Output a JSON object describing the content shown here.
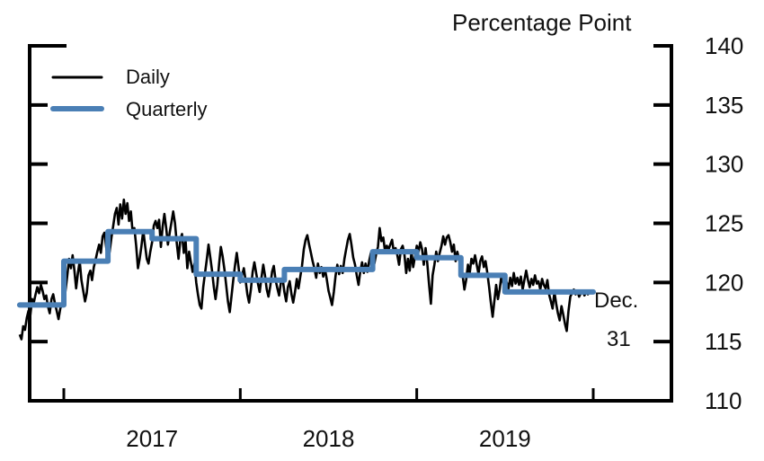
{
  "chart_data": {
    "type": "line",
    "title": "",
    "ylabel": "Percentage Point",
    "xlabel": "",
    "ylim": [
      110,
      140
    ],
    "yticks": [
      110,
      115,
      120,
      125,
      130,
      135,
      140
    ],
    "ytick_labels": [
      "110",
      "115",
      "120",
      "125",
      "130",
      "135",
      "140"
    ],
    "xlim": [
      2016.55,
      2020.45
    ],
    "xticks": [
      2017,
      2018,
      2019,
      2020
    ],
    "xtick_labels": [
      {
        "label": "2017",
        "x": 2017.5
      },
      {
        "label": "2018",
        "x": 2018.5
      },
      {
        "label": "2019",
        "x": 2019.5
      }
    ],
    "legend_position": "top-left",
    "grid": false,
    "annotations": [
      {
        "text": "Dec.",
        "x": 2020.0,
        "y": 118.2
      },
      {
        "text": "31",
        "x": 2020.0,
        "y": 115.2
      }
    ],
    "series": [
      {
        "name": "Daily",
        "color": "#000000",
        "x": [
          2016.75,
          2016.76,
          2016.77,
          2016.78,
          2016.79,
          2016.8,
          2016.81,
          2016.82,
          2016.83,
          2016.84,
          2016.85,
          2016.86,
          2016.87,
          2016.88,
          2016.89,
          2016.9,
          2016.91,
          2016.92,
          2016.93,
          2016.94,
          2016.95,
          2016.96,
          2016.97,
          2016.98,
          2016.99,
          2017.0,
          2017.01,
          2017.02,
          2017.03,
          2017.04,
          2017.05,
          2017.06,
          2017.07,
          2017.08,
          2017.09,
          2017.1,
          2017.11,
          2017.12,
          2017.13,
          2017.14,
          2017.15,
          2017.16,
          2017.17,
          2017.18,
          2017.19,
          2017.2,
          2017.21,
          2017.22,
          2017.23,
          2017.24,
          2017.25,
          2017.26,
          2017.27,
          2017.28,
          2017.29,
          2017.3,
          2017.31,
          2017.32,
          2017.33,
          2017.34,
          2017.35,
          2017.36,
          2017.37,
          2017.38,
          2017.39,
          2017.4,
          2017.41,
          2017.42,
          2017.43,
          2017.44,
          2017.45,
          2017.46,
          2017.47,
          2017.48,
          2017.49,
          2017.5,
          2017.51,
          2017.52,
          2017.53,
          2017.54,
          2017.55,
          2017.56,
          2017.57,
          2017.58,
          2017.59,
          2017.6,
          2017.61,
          2017.62,
          2017.63,
          2017.64,
          2017.65,
          2017.66,
          2017.67,
          2017.68,
          2017.69,
          2017.7,
          2017.71,
          2017.72,
          2017.73,
          2017.74,
          2017.75,
          2017.76,
          2017.77,
          2017.78,
          2017.79,
          2017.8,
          2017.81,
          2017.82,
          2017.83,
          2017.84,
          2017.85,
          2017.86,
          2017.87,
          2017.88,
          2017.89,
          2017.9,
          2017.91,
          2017.92,
          2017.93,
          2017.94,
          2017.95,
          2017.96,
          2017.97,
          2017.98,
          2017.99,
          2018.0,
          2018.01,
          2018.02,
          2018.03,
          2018.04,
          2018.05,
          2018.06,
          2018.07,
          2018.08,
          2018.09,
          2018.1,
          2018.11,
          2018.12,
          2018.13,
          2018.14,
          2018.15,
          2018.16,
          2018.17,
          2018.18,
          2018.19,
          2018.2,
          2018.21,
          2018.22,
          2018.23,
          2018.24,
          2018.25,
          2018.26,
          2018.27,
          2018.28,
          2018.29,
          2018.3,
          2018.31,
          2018.32,
          2018.33,
          2018.34,
          2018.35,
          2018.36,
          2018.37,
          2018.38,
          2018.39,
          2018.4,
          2018.41,
          2018.42,
          2018.43,
          2018.44,
          2018.45,
          2018.46,
          2018.47,
          2018.48,
          2018.49,
          2018.5,
          2018.51,
          2018.52,
          2018.53,
          2018.54,
          2018.55,
          2018.56,
          2018.57,
          2018.58,
          2018.59,
          2018.6,
          2018.61,
          2018.62,
          2018.63,
          2018.64,
          2018.65,
          2018.66,
          2018.67,
          2018.68,
          2018.69,
          2018.7,
          2018.71,
          2018.72,
          2018.73,
          2018.74,
          2018.75,
          2018.76,
          2018.77,
          2018.78,
          2018.79,
          2018.8,
          2018.81,
          2018.82,
          2018.83,
          2018.84,
          2018.85,
          2018.86,
          2018.87,
          2018.88,
          2018.89,
          2018.9,
          2018.91,
          2018.92,
          2018.93,
          2018.94,
          2018.95,
          2018.96,
          2018.97,
          2018.98,
          2018.99,
          2019.0,
          2019.01,
          2019.02,
          2019.03,
          2019.04,
          2019.05,
          2019.06,
          2019.07,
          2019.08,
          2019.09,
          2019.1,
          2019.11,
          2019.12,
          2019.13,
          2019.14,
          2019.15,
          2019.16,
          2019.17,
          2019.18,
          2019.19,
          2019.2,
          2019.21,
          2019.22,
          2019.23,
          2019.24,
          2019.25,
          2019.26,
          2019.27,
          2019.28,
          2019.29,
          2019.3,
          2019.31,
          2019.32,
          2019.33,
          2019.34,
          2019.35,
          2019.36,
          2019.37,
          2019.38,
          2019.39,
          2019.4,
          2019.41,
          2019.42,
          2019.43,
          2019.44,
          2019.45,
          2019.46,
          2019.47,
          2019.48,
          2019.49,
          2019.5,
          2019.51,
          2019.52,
          2019.53,
          2019.54,
          2019.55,
          2019.56,
          2019.57,
          2019.58,
          2019.59,
          2019.6,
          2019.61,
          2019.62,
          2019.63,
          2019.64,
          2019.65,
          2019.66,
          2019.67,
          2019.68,
          2019.69,
          2019.7,
          2019.71,
          2019.72,
          2019.73,
          2019.74,
          2019.75,
          2019.76,
          2019.77,
          2019.78,
          2019.79,
          2019.8,
          2019.81,
          2019.82,
          2019.83,
          2019.84,
          2019.85,
          2019.86,
          2019.87,
          2019.88,
          2019.89,
          2019.9,
          2019.91,
          2019.92,
          2019.93,
          2019.94,
          2019.95,
          2019.96,
          2019.97,
          2019.98,
          2019.99,
          2020.0
        ],
        "values": [
          115.6,
          115.2,
          116.3,
          116.0,
          117.0,
          117.6,
          117.2,
          118.6,
          118.3,
          119.0,
          119.6,
          119.1,
          119.8,
          119.3,
          118.6,
          118.9,
          118.0,
          117.4,
          118.6,
          119.0,
          118.2,
          117.6,
          116.9,
          117.8,
          118.2,
          118.0,
          119.4,
          120.6,
          122.0,
          121.2,
          122.3,
          121.0,
          119.5,
          120.8,
          121.8,
          120.2,
          119.3,
          118.4,
          119.1,
          120.6,
          121.0,
          120.2,
          121.3,
          121.9,
          122.6,
          123.2,
          122.5,
          123.9,
          124.2,
          123.0,
          121.9,
          122.6,
          123.8,
          124.8,
          125.8,
          126.3,
          124.9,
          126.6,
          125.4,
          127.0,
          125.8,
          126.7,
          125.2,
          126.0,
          124.2,
          124.6,
          123.1,
          121.2,
          122.0,
          123.1,
          124.4,
          123.2,
          122.0,
          121.6,
          122.6,
          123.4,
          124.8,
          125.2,
          124.6,
          125.3,
          123.0,
          124.7,
          125.8,
          124.6,
          123.2,
          124.2,
          125.1,
          126.0,
          125.0,
          123.3,
          122.0,
          123.6,
          124.1,
          122.5,
          123.5,
          121.2,
          122.6,
          121.7,
          120.9,
          121.6,
          120.0,
          119.0,
          118.1,
          117.8,
          119.6,
          120.8,
          121.9,
          123.2,
          122.1,
          121.0,
          119.6,
          118.6,
          119.8,
          121.6,
          123.0,
          122.2,
          121.1,
          119.8,
          118.4,
          117.5,
          118.8,
          120.2,
          121.4,
          122.5,
          121.3,
          120.0,
          120.6,
          121.2,
          120.2,
          119.0,
          118.3,
          119.4,
          120.9,
          121.7,
          120.8,
          119.9,
          119.2,
          120.4,
          121.5,
          120.6,
          119.4,
          118.8,
          119.7,
          120.9,
          121.4,
          120.2,
          119.5,
          118.9,
          120.0,
          120.3,
          119.2,
          118.4,
          119.6,
          120.1,
          119.0,
          118.3,
          119.2,
          120.3,
          119.5,
          120.5,
          121.4,
          122.8,
          123.6,
          124.0,
          123.2,
          122.5,
          121.8,
          121.2,
          120.4,
          121.6,
          120.8,
          121.3,
          120.5,
          121.1,
          120.3,
          119.3,
          118.7,
          118.1,
          119.2,
          120.6,
          121.5,
          120.7,
          121.4,
          120.8,
          122.0,
          122.8,
          123.6,
          124.1,
          123.2,
          122.1,
          121.5,
          120.6,
          119.8,
          120.9,
          121.7,
          120.8,
          121.6,
          120.9,
          121.8,
          122.5,
          122.3,
          121.6,
          122.4,
          123.0,
          124.6,
          123.5,
          123.8,
          122.7,
          123.1,
          122.8,
          123.2,
          123.6,
          122.6,
          122.9,
          122.3,
          121.5,
          122.8,
          123.1,
          122.4,
          120.8,
          122.0,
          121.0,
          122.6,
          121.3,
          122.2,
          123.1,
          122.6,
          123.4,
          122.8,
          121.5,
          122.9,
          121.6,
          119.8,
          118.2,
          120.6,
          121.5,
          122.6,
          121.8,
          122.5,
          123.1,
          123.9,
          123.2,
          123.8,
          124.0,
          123.4,
          122.6,
          123.2,
          121.8,
          122.6,
          121.9,
          121.4,
          120.6,
          119.4,
          120.2,
          121.5,
          120.8,
          122.0,
          121.6,
          122.3,
          121.5,
          120.7,
          121.8,
          122.2,
          121.3,
          121.8,
          120.8,
          119.6,
          118.3,
          117.1,
          118.5,
          119.8,
          118.6,
          119.4,
          120.6,
          119.9,
          119.2,
          120.0,
          119.5,
          120.4,
          119.7,
          120.8,
          119.9,
          120.4,
          119.8,
          120.5,
          119.4,
          120.2,
          121.0,
          120.2,
          119.6,
          120.3,
          119.8,
          120.6,
          119.9,
          120.1,
          119.4,
          120.3,
          119.8,
          119.5,
          120.2,
          119.0,
          118.4,
          117.8,
          119.2,
          118.2,
          117.4,
          116.8,
          118.0,
          117.3,
          116.5,
          115.9,
          117.6,
          118.8,
          119.1,
          119.4,
          119.0,
          119.3,
          118.8,
          119.1,
          119.3,
          118.9,
          119.2,
          119.0,
          119.2,
          119.1,
          119.2
        ]
      },
      {
        "name": "Quarterly",
        "color": "#4a7fb5",
        "quarters": [
          "2016Q4",
          "2017Q1",
          "2017Q2",
          "2017Q3",
          "2017Q4",
          "2018Q1",
          "2018Q2",
          "2018Q3",
          "2018Q4",
          "2019Q1",
          "2019Q2",
          "2019Q3",
          "2019Q4"
        ],
        "x_start": [
          2016.75,
          2017.0,
          2017.25,
          2017.5,
          2017.75,
          2018.0,
          2018.25,
          2018.5,
          2018.75,
          2019.0,
          2019.25,
          2019.5,
          2019.75
        ],
        "values": [
          118.1,
          121.8,
          124.3,
          123.7,
          120.7,
          120.2,
          121.1,
          121.1,
          122.6,
          122.1,
          120.6,
          119.2,
          119.2
        ]
      }
    ]
  },
  "legend": {
    "daily_label": "Daily",
    "quarterly_label": "Quarterly"
  }
}
